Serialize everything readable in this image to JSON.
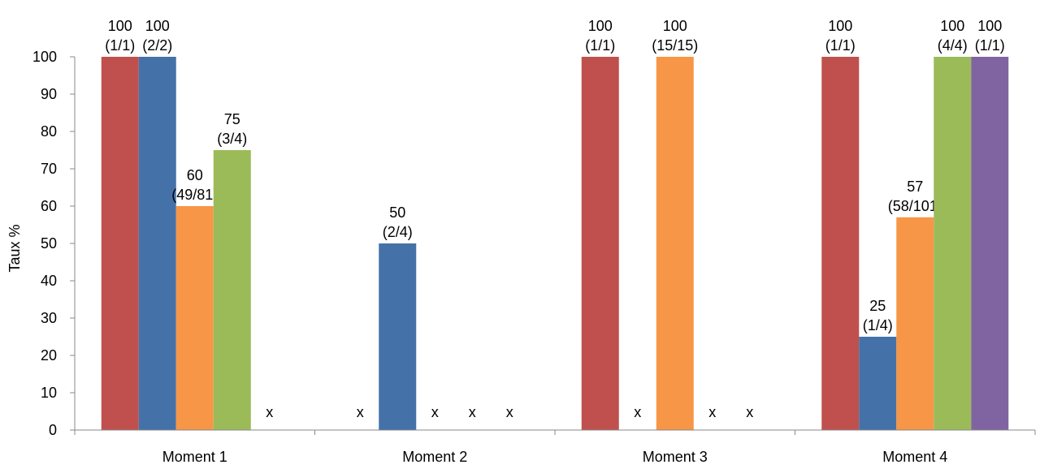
{
  "chart_data": {
    "type": "bar",
    "title": "",
    "xlabel": "",
    "ylabel": "Taux %",
    "ylim": [
      0,
      100
    ],
    "yticks": [
      0,
      10,
      20,
      30,
      40,
      50,
      60,
      70,
      80,
      90,
      100
    ],
    "grid": false,
    "legend": "none",
    "categories": [
      "Moment 1",
      "Moment 2",
      "Moment 3",
      "Moment 4"
    ],
    "series": [
      {
        "color": "#C0504D",
        "values": [
          100,
          null,
          100,
          100
        ],
        "labels": [
          [
            "100",
            "(1/1)"
          ],
          null,
          [
            "100",
            "(1/1)"
          ],
          [
            "100",
            "(1/1)"
          ]
        ],
        "markers": [
          null,
          "x",
          null,
          null
        ]
      },
      {
        "color": "#4472A8",
        "values": [
          100,
          50,
          null,
          25
        ],
        "labels": [
          [
            "100",
            "(2/2)"
          ],
          [
            "50",
            "(2/4)"
          ],
          null,
          [
            "25",
            "(1/4)"
          ]
        ],
        "markers": [
          null,
          null,
          "x",
          null
        ]
      },
      {
        "color": "#F79646",
        "values": [
          60,
          null,
          100,
          57
        ],
        "labels": [
          [
            "60",
            "(49/81)"
          ],
          null,
          [
            "100",
            "(15/15)"
          ],
          [
            "57",
            "(58/101)"
          ]
        ],
        "markers": [
          null,
          "x",
          null,
          null
        ]
      },
      {
        "color": "#9BBB59",
        "values": [
          75,
          null,
          null,
          100
        ],
        "labels": [
          [
            "75",
            "(3/4)"
          ],
          null,
          null,
          [
            "100",
            "(4/4)"
          ]
        ],
        "markers": [
          null,
          "x",
          "x",
          null
        ]
      },
      {
        "color": "#8064A2",
        "values": [
          null,
          null,
          null,
          100
        ],
        "labels": [
          null,
          null,
          null,
          [
            "100",
            "(1/1)"
          ]
        ],
        "markers": [
          "x",
          "x",
          "x",
          null
        ]
      }
    ]
  }
}
